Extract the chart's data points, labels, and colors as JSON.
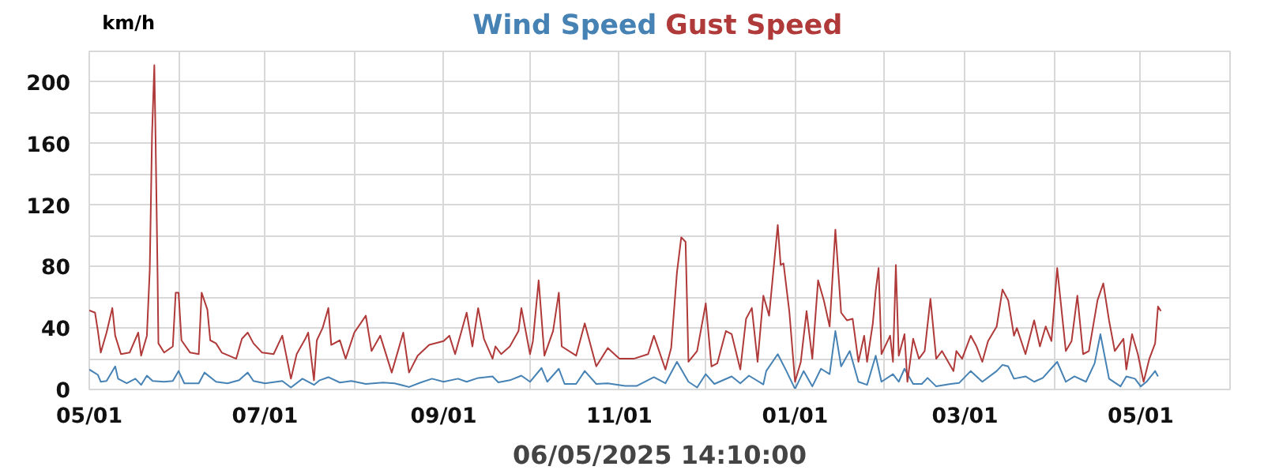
{
  "chart_data": {
    "type": "line",
    "xlabel": "06/05/2025 14:10:00",
    "ylabel": "km/h",
    "grid": true,
    "xlim": [
      "2024-05-01",
      "2025-06-01"
    ],
    "ylim": [
      0,
      220
    ],
    "xticks": [
      {
        "value": "2024-05-01",
        "label": "05/01"
      },
      {
        "value": "2024-06-01",
        "label": null
      },
      {
        "value": "2024-07-01",
        "label": "07/01"
      },
      {
        "value": "2024-08-01",
        "label": null
      },
      {
        "value": "2024-09-01",
        "label": "09/01"
      },
      {
        "value": "2024-10-01",
        "label": null
      },
      {
        "value": "2024-11-01",
        "label": "11/01"
      },
      {
        "value": "2024-12-01",
        "label": null
      },
      {
        "value": "2025-01-01",
        "label": "01/01"
      },
      {
        "value": "2025-02-01",
        "label": null
      },
      {
        "value": "2025-03-01",
        "label": "03/01"
      },
      {
        "value": "2025-04-01",
        "label": null
      },
      {
        "value": "2025-05-01",
        "label": "05/01"
      }
    ],
    "yticks": [
      0,
      {
        "value": 20,
        "label": null
      },
      40,
      {
        "value": 60,
        "label": null
      },
      80,
      {
        "value": 100,
        "label": null
      },
      120,
      {
        "value": 140,
        "label": null
      },
      160,
      {
        "value": 180,
        "label": null
      },
      200
    ],
    "series": [
      {
        "name": "Wind Speed",
        "color": "#4682b4",
        "x": [
          "2024-05-01",
          "2024-05-04",
          "2024-05-05",
          "2024-05-07",
          "2024-05-10",
          "2024-05-11",
          "2024-05-14",
          "2024-05-17",
          "2024-05-19",
          "2024-05-21",
          "2024-05-23",
          "2024-05-27",
          "2024-05-30",
          "2024-06-01",
          "2024-06-03",
          "2024-06-08",
          "2024-06-10",
          "2024-06-14",
          "2024-06-18",
          "2024-06-22",
          "2024-06-25",
          "2024-06-27",
          "2024-07-01",
          "2024-07-07",
          "2024-07-10",
          "2024-07-14",
          "2024-07-18",
          "2024-07-20",
          "2024-07-23",
          "2024-07-27",
          "2024-07-31",
          "2024-08-05",
          "2024-08-11",
          "2024-08-15",
          "2024-08-20",
          "2024-08-24",
          "2024-08-28",
          "2024-09-01",
          "2024-09-06",
          "2024-09-09",
          "2024-09-13",
          "2024-09-18",
          "2024-09-20",
          "2024-09-24",
          "2024-09-28",
          "2024-10-01",
          "2024-10-05",
          "2024-10-07",
          "2024-10-11",
          "2024-10-13",
          "2024-10-17",
          "2024-10-20",
          "2024-10-24",
          "2024-10-28",
          "2024-11-03",
          "2024-11-07",
          "2024-11-13",
          "2024-11-17",
          "2024-11-21",
          "2024-11-25",
          "2024-11-28",
          "2024-12-01",
          "2024-12-04",
          "2024-12-10",
          "2024-12-13",
          "2024-12-16",
          "2024-12-21",
          "2024-12-22",
          "2024-12-26",
          "2024-12-29",
          "2025-01-01",
          "2025-01-04",
          "2025-01-07",
          "2025-01-10",
          "2025-01-13",
          "2025-01-15",
          "2025-01-17",
          "2025-01-20",
          "2025-01-23",
          "2025-01-26",
          "2025-01-29",
          "2025-01-31",
          "2025-02-04",
          "2025-02-06",
          "2025-02-08",
          "2025-02-11",
          "2025-02-14",
          "2025-02-16",
          "2025-02-19",
          "2025-02-24",
          "2025-02-27",
          "2025-03-03",
          "2025-03-07",
          "2025-03-12",
          "2025-03-14",
          "2025-03-16",
          "2025-03-18",
          "2025-03-22",
          "2025-03-25",
          "2025-03-28",
          "2025-04-02",
          "2025-04-05",
          "2025-04-08",
          "2025-04-12",
          "2025-04-15",
          "2025-04-17",
          "2025-04-20",
          "2025-04-24",
          "2025-04-26",
          "2025-04-29",
          "2025-05-01",
          "2025-05-03",
          "2025-05-06",
          "2025-05-07"
        ],
        "values": [
          13,
          9.5,
          5,
          5.5,
          15,
          7,
          4,
          7,
          3,
          9,
          5.5,
          5,
          5.5,
          12,
          4,
          4,
          11,
          5,
          4,
          6,
          11,
          5.5,
          4,
          5.5,
          1.3,
          7,
          3,
          6,
          8,
          4.5,
          5.5,
          3.6,
          4.5,
          4,
          1.6,
          4.5,
          7,
          5,
          7,
          5,
          7.5,
          8.5,
          4.6,
          6,
          9,
          5,
          14,
          5,
          13.5,
          3.6,
          3.6,
          12,
          3.6,
          4,
          2.3,
          2.3,
          8,
          4,
          18,
          5,
          1.3,
          10,
          3.6,
          8.5,
          4,
          9,
          3.3,
          12,
          23,
          12,
          0.3,
          12,
          2,
          13.5,
          10,
          38,
          15,
          25,
          5,
          3,
          22,
          5,
          10,
          5,
          13.5,
          3.6,
          3.6,
          7.5,
          2,
          3.6,
          4.3,
          12,
          5,
          12,
          16,
          15,
          7,
          8.5,
          5,
          7.5,
          18,
          5,
          8.5,
          5,
          17,
          36,
          7,
          2,
          8.5,
          7,
          2,
          5,
          12,
          8.5
        ]
      },
      {
        "name": "Gust Speed",
        "color": "#b03a3a",
        "x": [
          "2024-05-01",
          "2024-05-03",
          "2024-05-04",
          "2024-05-05",
          "2024-05-07",
          "2024-05-09",
          "2024-05-10",
          "2024-05-12",
          "2024-05-15",
          "2024-05-18",
          "2024-05-19",
          "2024-05-21",
          "2024-05-22",
          "2024-05-22T19:00",
          "2024-05-23T14:00",
          "2024-05-24",
          "2024-05-24T17:00",
          "2024-05-25",
          "2024-05-27",
          "2024-05-30",
          "2024-05-31",
          "2024-06-01",
          "2024-06-02",
          "2024-06-05",
          "2024-06-08",
          "2024-06-09",
          "2024-06-11",
          "2024-06-12",
          "2024-06-14",
          "2024-06-16",
          "2024-06-21",
          "2024-06-23",
          "2024-06-25",
          "2024-06-27",
          "2024-06-30",
          "2024-07-04",
          "2024-07-07",
          "2024-07-10",
          "2024-07-12",
          "2024-07-15",
          "2024-07-16",
          "2024-07-18",
          "2024-07-19",
          "2024-07-21",
          "2024-07-23",
          "2024-07-24",
          "2024-07-27",
          "2024-07-29",
          "2024-08-01",
          "2024-08-05",
          "2024-08-07",
          "2024-08-10",
          "2024-08-14",
          "2024-08-18",
          "2024-08-20",
          "2024-08-23",
          "2024-08-27",
          "2024-09-01",
          "2024-09-03",
          "2024-09-05",
          "2024-09-09",
          "2024-09-11",
          "2024-09-13",
          "2024-09-15",
          "2024-09-18",
          "2024-09-19",
          "2024-09-21",
          "2024-09-24",
          "2024-09-27",
          "2024-09-28",
          "2024-10-01",
          "2024-10-02",
          "2024-10-04",
          "2024-10-06",
          "2024-10-09",
          "2024-10-11",
          "2024-10-12",
          "2024-10-17",
          "2024-10-19",
          "2024-10-20",
          "2024-10-24",
          "2024-10-28",
          "2024-11-01",
          "2024-11-06",
          "2024-11-11",
          "2024-11-13",
          "2024-11-17",
          "2024-11-19",
          "2024-11-21",
          "2024-11-22T12:00",
          "2024-11-24",
          "2024-11-25",
          "2024-11-28",
          "2024-12-01",
          "2024-12-03",
          "2024-12-05",
          "2024-12-08",
          "2024-12-10",
          "2024-12-13",
          "2024-12-15",
          "2024-12-17",
          "2024-12-19",
          "2024-12-21",
          "2024-12-23",
          "2024-12-26",
          "2024-12-27",
          "2024-12-28",
          "2024-12-30",
          "2025-01-01",
          "2025-01-03",
          "2025-01-05",
          "2025-01-07",
          "2025-01-09",
          "2025-01-11",
          "2025-01-13",
          "2025-01-15",
          "2025-01-17",
          "2025-01-19",
          "2025-01-21",
          "2025-01-23",
          "2025-01-25",
          "2025-01-26",
          "2025-01-28",
          "2025-01-29",
          "2025-01-30",
          "2025-01-31",
          "2025-02-03",
          "2025-02-04",
          "2025-02-05",
          "2025-02-06",
          "2025-02-08",
          "2025-02-09",
          "2025-02-11",
          "2025-02-13",
          "2025-02-15",
          "2025-02-17",
          "2025-02-19",
          "2025-02-21",
          "2025-02-25",
          "2025-02-26",
          "2025-02-28",
          "2025-03-03",
          "2025-03-05",
          "2025-03-07",
          "2025-03-09",
          "2025-03-12",
          "2025-03-14",
          "2025-03-16",
          "2025-03-18",
          "2025-03-19",
          "2025-03-22",
          "2025-03-25",
          "2025-03-27",
          "2025-03-29",
          "2025-03-31",
          "2025-04-02",
          "2025-04-05",
          "2025-04-07",
          "2025-04-09",
          "2025-04-11",
          "2025-04-13",
          "2025-04-16",
          "2025-04-18",
          "2025-04-20",
          "2025-04-22",
          "2025-04-25",
          "2025-04-26",
          "2025-04-28",
          "2025-04-30",
          "2025-05-02",
          "2025-05-04",
          "2025-05-06",
          "2025-05-07",
          "2025-05-08"
        ],
        "values": [
          51.5,
          50,
          38,
          24,
          37,
          53,
          35,
          23,
          24,
          37,
          22,
          35,
          78,
          166,
          211,
          165,
          75,
          30,
          24,
          28,
          63,
          63,
          32,
          24,
          23,
          63,
          52,
          32,
          30,
          24,
          20,
          33,
          37,
          30,
          24,
          23,
          35,
          7,
          23,
          33,
          37,
          6,
          32,
          40,
          53,
          29,
          32,
          20,
          37,
          48,
          25,
          35,
          11,
          37,
          11,
          22,
          29,
          31.5,
          35,
          23,
          50,
          28,
          53,
          33,
          20,
          28,
          23,
          28,
          38,
          53,
          23,
          31.5,
          71,
          22,
          38,
          63,
          28,
          22,
          36,
          43,
          15,
          27,
          20,
          20,
          23,
          35,
          13,
          27,
          76,
          99,
          96,
          18,
          25,
          56,
          15,
          17,
          38,
          36,
          13,
          46,
          53,
          18,
          61,
          48,
          107,
          81,
          82,
          51,
          5,
          18,
          51,
          20,
          71,
          58,
          41,
          104,
          50,
          45,
          46,
          18,
          35,
          18,
          43,
          64,
          79,
          23,
          35,
          18,
          81,
          22,
          36,
          5,
          33,
          20,
          25,
          59,
          20,
          25,
          12,
          25,
          20,
          35,
          28,
          18,
          31.5,
          41,
          65,
          58,
          35,
          40,
          23,
          45,
          28,
          41,
          31.5,
          79,
          25,
          31.5,
          61,
          23,
          25,
          58,
          69,
          45,
          25,
          33,
          13,
          36,
          23,
          5,
          20,
          30,
          54,
          51
        ]
      }
    ]
  }
}
